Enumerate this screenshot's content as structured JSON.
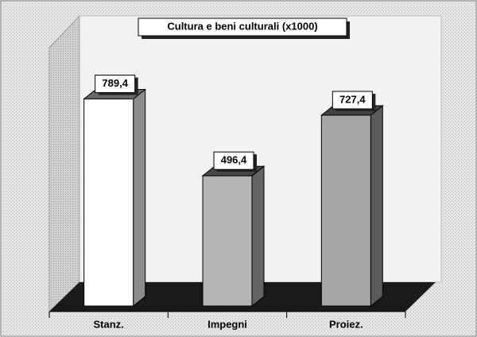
{
  "chart_data": {
    "type": "bar3d",
    "title": "Cultura e beni culturali (x1000)",
    "categories": [
      "Stanz.",
      "Impegni",
      "Proiez."
    ],
    "values": [
      789.4,
      496.4,
      727.4
    ],
    "value_labels": [
      "789,4",
      "496,4",
      "727,4"
    ],
    "colors": [
      "#ffffff",
      "#b4b4b4",
      "#a6a6a6"
    ],
    "ylim": [
      0,
      1000
    ]
  }
}
